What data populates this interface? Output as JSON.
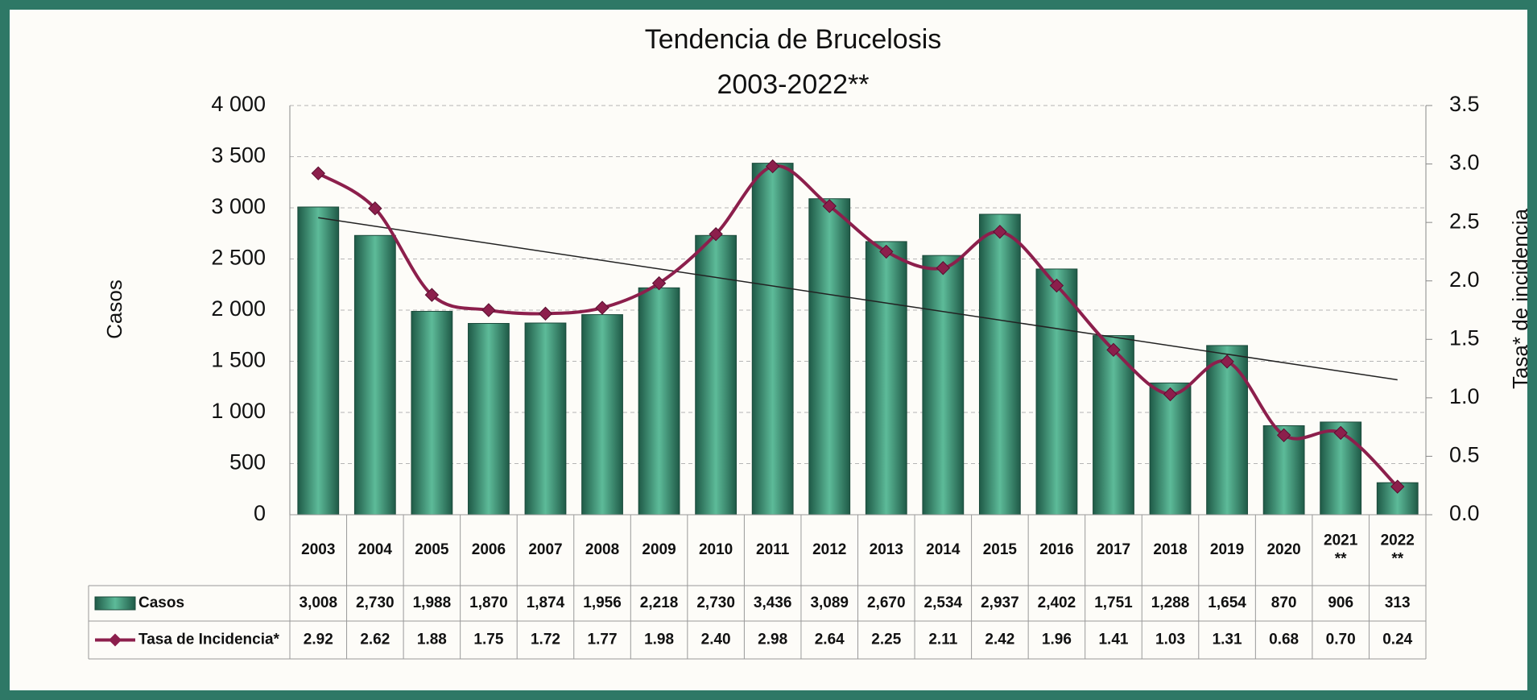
{
  "chart_data": {
    "type": "bar",
    "title": "Tendencia de Brucelosis",
    "subtitle": "2003-2022**",
    "ylabel": "Casos",
    "y2label": "Tasa* de incidencia",
    "categories": [
      "2003",
      "2004",
      "2005",
      "2006",
      "2007",
      "2008",
      "2009",
      "2010",
      "2011",
      "2012",
      "2013",
      "2014",
      "2015",
      "2016",
      "2017",
      "2018",
      "2019",
      "2020",
      "2021\n**",
      "2022\n**"
    ],
    "series": [
      {
        "name": "Casos",
        "type": "bar",
        "color": "#5dbb99",
        "values": [
          3008,
          2730,
          1988,
          1870,
          1874,
          1956,
          2218,
          2730,
          3436,
          3089,
          2670,
          2534,
          2937,
          2402,
          1751,
          1288,
          1654,
          870,
          906,
          313
        ],
        "value_labels": [
          "3,008",
          "2,730",
          "1,988",
          "1,870",
          "1,874",
          "1,956",
          "2,218",
          "2,730",
          "3,436",
          "3,089",
          "2,670",
          "2,534",
          "2,937",
          "2,402",
          "1,751",
          "1,288",
          "1,654",
          "870",
          "906",
          "313"
        ]
      },
      {
        "name": "Tasa de Incidencia*",
        "type": "line",
        "axis": "y2",
        "color": "#8c1f4c",
        "values": [
          2.92,
          2.62,
          1.88,
          1.75,
          1.72,
          1.77,
          1.98,
          2.4,
          2.98,
          2.64,
          2.25,
          2.11,
          2.42,
          1.96,
          1.41,
          1.03,
          1.31,
          0.68,
          0.7,
          0.24
        ],
        "value_labels": [
          "2.92",
          "2.62",
          "1.88",
          "1.75",
          "1.72",
          "1.77",
          "1.98",
          "2.40",
          "2.98",
          "2.64",
          "2.25",
          "2.11",
          "2.42",
          "1.96",
          "1.41",
          "1.03",
          "1.31",
          "0.68",
          "0.70",
          "0.24"
        ]
      }
    ],
    "ylim": [
      0,
      4000
    ],
    "yticks": [
      0,
      500,
      {
        "value": 1000,
        "label": "1 000"
      },
      {
        "value": 1500,
        "label": "1 500"
      },
      {
        "value": 2000,
        "label": "2 000"
      },
      {
        "value": 2500,
        "label": "2 500"
      },
      {
        "value": 3000,
        "label": "3 000"
      },
      {
        "value": 3500,
        "label": "3 500"
      },
      {
        "value": 4000,
        "label": "4 000"
      }
    ],
    "y2lim": [
      0,
      3.5
    ],
    "y2ticks": [
      {
        "value": 0,
        "label": "0.0"
      },
      0.5,
      {
        "value": 1,
        "label": "1.0"
      },
      1.5,
      {
        "value": 2,
        "label": "2.0"
      },
      2.5,
      {
        "value": 3,
        "label": "3.0"
      },
      3.5
    ],
    "grid": true,
    "trendline": true,
    "data_table": true
  }
}
